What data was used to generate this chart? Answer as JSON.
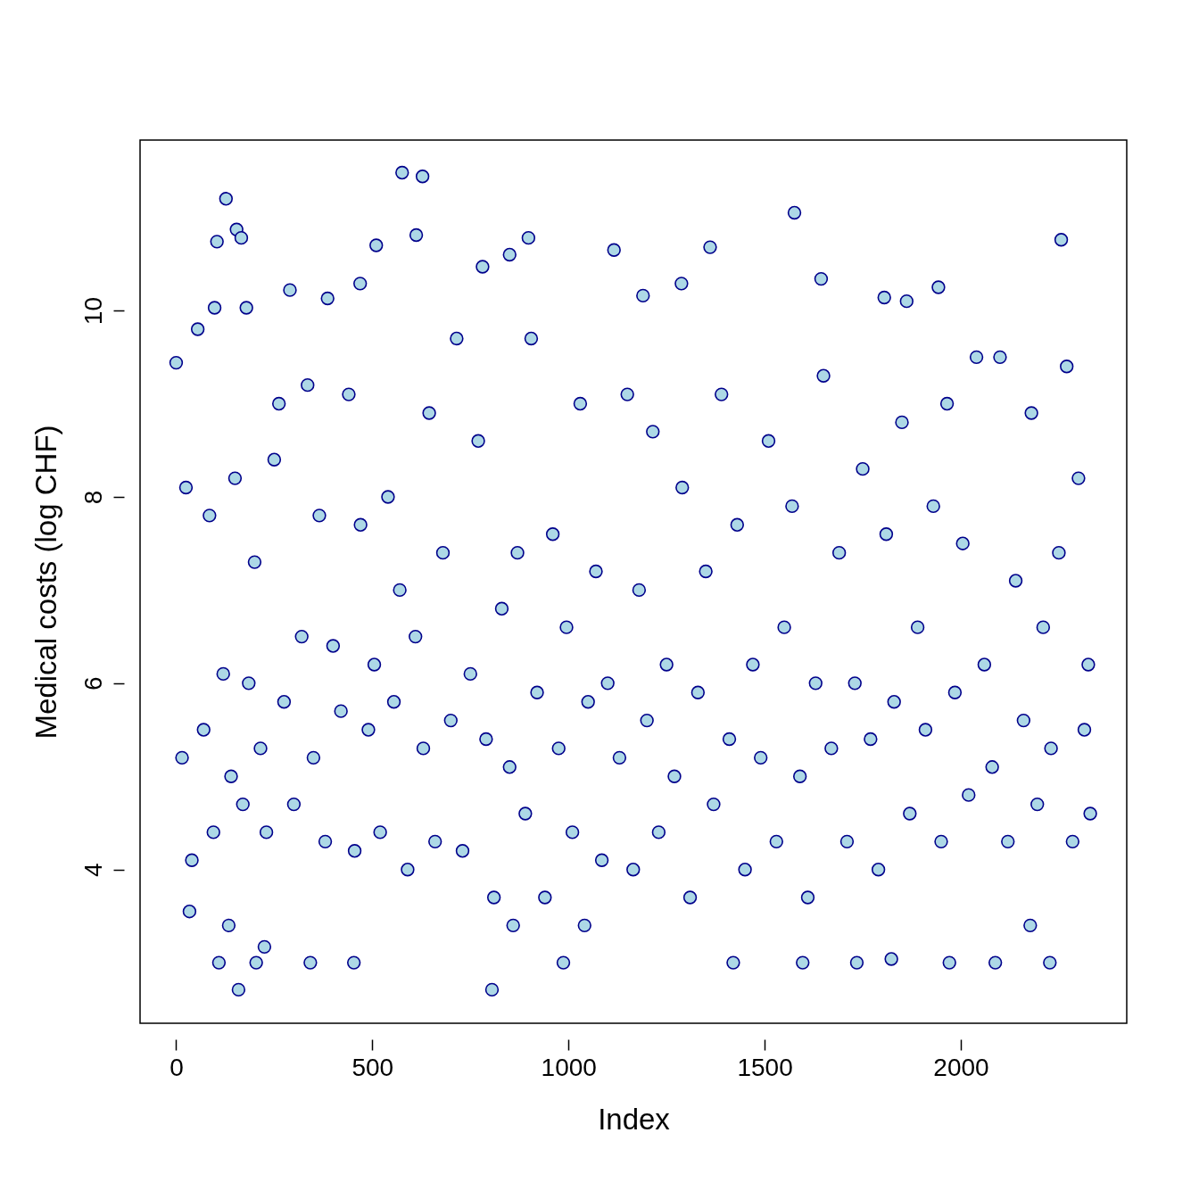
{
  "chart_data": {
    "type": "scatter",
    "xlabel": "Index",
    "ylabel": "Medical costs (log CHF)",
    "xlim": [
      -92,
      2423
    ],
    "ylim": [
      2.35,
      11.83
    ],
    "xticks": [
      0,
      500,
      1000,
      1500,
      2000
    ],
    "yticks": [
      4,
      6,
      8,
      10
    ],
    "grid": false,
    "marker": "circle",
    "series": [
      {
        "color": "#add8e6",
        "x": [
          0,
          127,
          154,
          166,
          104,
          98,
          179,
          576,
          628,
          612,
          510,
          898,
          1116,
          1576,
          1361,
          1644,
          2256,
          781,
          850,
          1288,
          1190,
          1805,
          1862,
          1943,
          290,
          469,
          386,
          159,
          805,
          225,
          109,
          204,
          342,
          453,
          987,
          1420,
          1597,
          1735,
          1823,
          1971,
          2088,
          2227,
          1041,
          2177,
          134,
          859,
          34,
          15,
          25,
          40,
          55,
          70,
          85,
          95,
          120,
          140,
          150,
          170,
          185,
          200,
          215,
          230,
          250,
          262,
          275,
          300,
          320,
          335,
          350,
          365,
          380,
          400,
          420,
          440,
          455,
          470,
          490,
          505,
          520,
          540,
          555,
          570,
          590,
          610,
          630,
          645,
          660,
          680,
          700,
          715,
          730,
          750,
          770,
          790,
          810,
          830,
          850,
          870,
          890,
          905,
          920,
          940,
          960,
          975,
          995,
          1010,
          1030,
          1050,
          1070,
          1085,
          1100,
          1130,
          1150,
          1165,
          1180,
          1200,
          1215,
          1230,
          1250,
          1270,
          1290,
          1310,
          1330,
          1350,
          1370,
          1390,
          1410,
          1430,
          1450,
          1470,
          1490,
          1510,
          1530,
          1550,
          1570,
          1590,
          1610,
          1630,
          1650,
          1670,
          1690,
          1710,
          1730,
          1750,
          1770,
          1790,
          1810,
          1830,
          1850,
          1870,
          1890,
          1910,
          1930,
          1950,
          1965,
          1985,
          2005,
          2020,
          2040,
          2060,
          2080,
          2100,
          2120,
          2140,
          2160,
          2180,
          2195,
          2210,
          2230,
          2250,
          2270,
          2285,
          2300,
          2315,
          2325,
          2330
        ],
        "values": [
          9.44,
          11.2,
          10.87,
          10.78,
          10.74,
          10.03,
          10.03,
          11.48,
          11.44,
          10.81,
          10.7,
          10.78,
          10.65,
          11.05,
          10.68,
          10.34,
          10.76,
          10.47,
          10.6,
          10.29,
          10.16,
          10.14,
          10.1,
          10.25,
          10.22,
          10.29,
          10.13,
          2.71,
          2.71,
          3.17,
          3.0,
          3.0,
          3.0,
          3.0,
          3.0,
          3.0,
          3.0,
          3.0,
          3.04,
          3.0,
          3.0,
          3.0,
          3.4,
          3.4,
          3.4,
          3.4,
          3.55,
          5.2,
          8.1,
          4.1,
          9.8,
          5.5,
          7.8,
          4.4,
          6.1,
          5.0,
          8.2,
          4.7,
          6.0,
          7.3,
          5.3,
          4.4,
          8.4,
          9.0,
          5.8,
          4.7,
          6.5,
          9.2,
          5.2,
          7.8,
          4.3,
          6.4,
          5.7,
          9.1,
          4.2,
          7.7,
          5.5,
          6.2,
          4.4,
          8.0,
          5.8,
          7.0,
          4.0,
          6.5,
          5.3,
          8.9,
          4.3,
          7.4,
          5.6,
          9.7,
          4.2,
          6.1,
          8.6,
          5.4,
          3.7,
          6.8,
          5.1,
          7.4,
          4.6,
          9.7,
          5.9,
          3.7,
          7.6,
          5.3,
          6.6,
          4.4,
          9.0,
          5.8,
          7.2,
          4.1,
          6.0,
          5.2,
          9.1,
          4.0,
          7.0,
          5.6,
          8.7,
          4.4,
          6.2,
          5.0,
          8.1,
          3.7,
          5.9,
          7.2,
          4.7,
          9.1,
          5.4,
          7.7,
          4.0,
          6.2,
          5.2,
          8.6,
          4.3,
          6.6,
          7.9,
          5.0,
          3.7,
          6.0,
          9.3,
          5.3,
          7.4,
          4.3,
          6.0,
          8.3,
          5.4,
          4.0,
          7.6,
          5.8,
          8.8,
          4.6,
          6.6,
          5.5,
          7.9,
          4.3,
          9.0,
          5.9,
          7.5,
          4.8,
          9.5,
          6.2,
          5.1,
          9.5,
          4.3,
          7.1,
          5.6,
          8.9,
          4.7,
          6.6,
          5.3,
          7.4,
          9.4,
          4.3,
          8.2,
          5.5,
          6.2,
          4.6
        ]
      }
    ]
  }
}
